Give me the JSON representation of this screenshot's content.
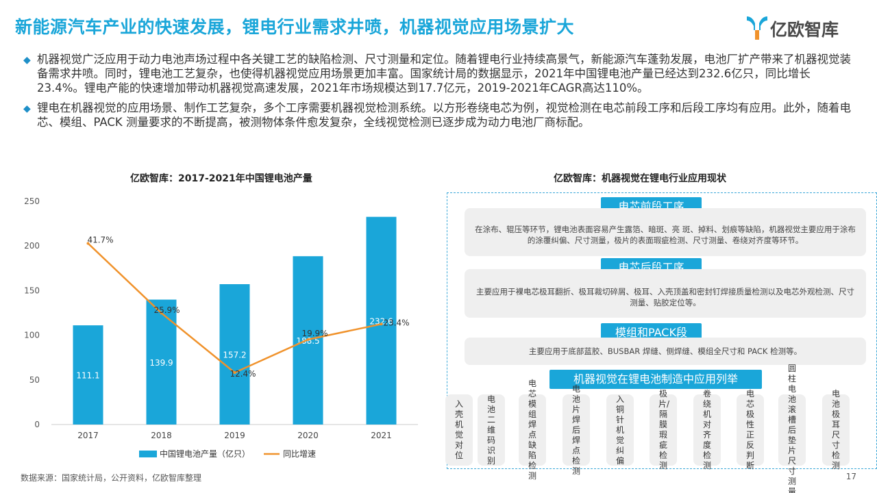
{
  "header": {
    "title": "新能源汽车产业的快速发展，锂电行业需求井喷，机器视觉应用场景扩大",
    "logo_text": "亿欧智库"
  },
  "bullets": [
    "机器视觉广泛应用于动力电池声场过程中各关键工艺的缺陷检测、尺寸测量和定位。随着锂电行业持续高景气，新能源汽车蓬勃发展，电池厂扩产带来了机器视觉装备需求井喷。同时，锂电池工艺复杂，也使得机器视觉应用场景更加丰富。国家统计局的数据显示，2021年中国锂电池产量已经达到232.6亿只，同比增长23.4%。锂电产能的快速增加带动机器视觉高速发展，2021年市场规模达到17.7亿元，2019-2021年CAGR高达110%。",
    "锂电在机器视觉的应用场景、制作工艺复杂，多个工序需要机器视觉检测系统。以方形卷绕电芯为例，视觉检测在电芯前段工序和后段工序均有应用。此外，随着电芯、模组、PACK 测量要求的不断提高，被测物体条件愈发复杂，全线视觉检测已逐步成为动力电池厂商标配。"
  ],
  "left_chart_title": "亿欧智库：2017-2021年中国锂电池产量",
  "right_chart_title": "亿欧智库：机器视觉在锂电行业应用现状",
  "chart_data": {
    "type": "bar",
    "categories": [
      "2017",
      "2018",
      "2019",
      "2020",
      "2021"
    ],
    "series": [
      {
        "name": "中国锂电池产量（亿只）",
        "type": "bar",
        "values": [
          111.1,
          139.9,
          157.2,
          188.5,
          232.6
        ],
        "labels": [
          "111.1",
          "139.9",
          "157.2",
          "188.5",
          "232.6"
        ],
        "color": "#1aa6d9"
      },
      {
        "name": "同比增速",
        "type": "line",
        "values": [
          41.7,
          25.9,
          12.4,
          19.9,
          23.4
        ],
        "labels": [
          "41.7%",
          "25.9%",
          "12.4%",
          "19.9%",
          "23.4%"
        ],
        "color": "#f0922b"
      }
    ],
    "yticks": [
      "0",
      "50",
      "100",
      "150",
      "200",
      "250"
    ],
    "ylim": [
      0,
      250
    ],
    "legend": "bottom"
  },
  "panel": {
    "stages": [
      {
        "label": "电芯前段工序",
        "text": "在涂布、辊压等环节，锂电池表面容易产生露箔、暗斑、亮 斑、掉料、划痕等缺陷，机器视觉主要应用于涂布的涂覆纠偏、尺寸测量，极片的表面瑕疵检测、尺寸测量、卷绕对齐度等环节。"
      },
      {
        "label": "电芯后段工序",
        "text": "主要应用于裸电芯极耳翻折、极耳裁切碎屑、极耳、入壳顶盖和密封钉焊接质量检测以及电芯外观检测、尺寸测量、贴胶定位等。"
      },
      {
        "label": "模组和PACK段",
        "text": "主要应用于底部蓝胶、BUSBAR 焊缝、侧焊缝、模组全尺寸和 PACK 检测等。"
      }
    ],
    "apps_title": "机器视觉在锂电池制造中应用列举",
    "apps": [
      "入壳机觉对位",
      "电池二维码识别",
      "电芯模组焊点缺陷检测",
      "电池片焊后焊点检测",
      "入铜针机觉纠偏",
      "极片/隔膜瑕疵检测",
      "卷绕机对齐度检测",
      "电芯极性正反判断",
      "圆柱电池滚槽后垫片尺寸测量",
      "电池极耳尺寸检测"
    ]
  },
  "footer": {
    "source": "数据来源：国家统计局，公开资料，亿欧智库整理",
    "page": "17"
  },
  "colors": {
    "accent": "#1aa6d9",
    "line": "#f0922b",
    "bullet": "#1e8fc8"
  }
}
